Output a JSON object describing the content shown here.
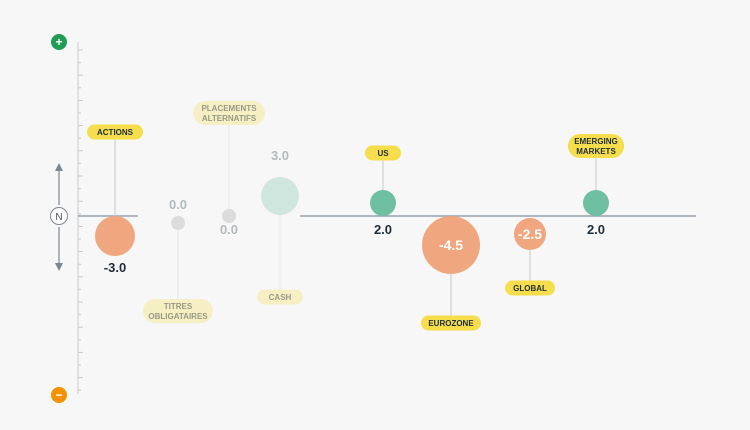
{
  "chart_data": {
    "type": "scatter",
    "axis": {
      "top_symbol": "+",
      "bottom_symbol": "−",
      "neutral_label": "N",
      "top_color": "#1f9d55",
      "bottom_color": "#f39200"
    },
    "ylim": [
      -7,
      7
    ],
    "items": [
      {
        "label": "ACTIONS",
        "value": -3.0,
        "value_label": "-3.0",
        "faded": false,
        "label_side": "above"
      },
      {
        "label": "TITRES\nOBLIGATAIRES",
        "value": 0.0,
        "value_label": "0.0",
        "faded": true,
        "label_side": "below"
      },
      {
        "label": "PLACEMENTS\nALTERNATIFS",
        "value": 0.0,
        "value_label": "0.0",
        "faded": true,
        "label_side": "above"
      },
      {
        "label": "CASH",
        "value": 3.0,
        "value_label": "3.0",
        "faded": true,
        "label_side": "below"
      },
      {
        "label": "US",
        "value": 2.0,
        "value_label": "2.0",
        "faded": false,
        "label_side": "above"
      },
      {
        "label": "EUROZONE",
        "value": -4.5,
        "value_label": "-4.5",
        "faded": false,
        "label_side": "below"
      },
      {
        "label": "GLOBAL",
        "value": -2.5,
        "value_label": "-2.5",
        "faded": false,
        "label_side": "below"
      },
      {
        "label": "EMERGING\nMARKETS",
        "value": 2.0,
        "value_label": "2.0",
        "faded": false,
        "label_side": "above"
      }
    ],
    "colors": {
      "positive": "#6fbfa3",
      "negative": "#f0a77f",
      "neutral": "#d4d4d4",
      "tag": "#f5dd4b",
      "tag_faded": "#f7efc4"
    }
  }
}
